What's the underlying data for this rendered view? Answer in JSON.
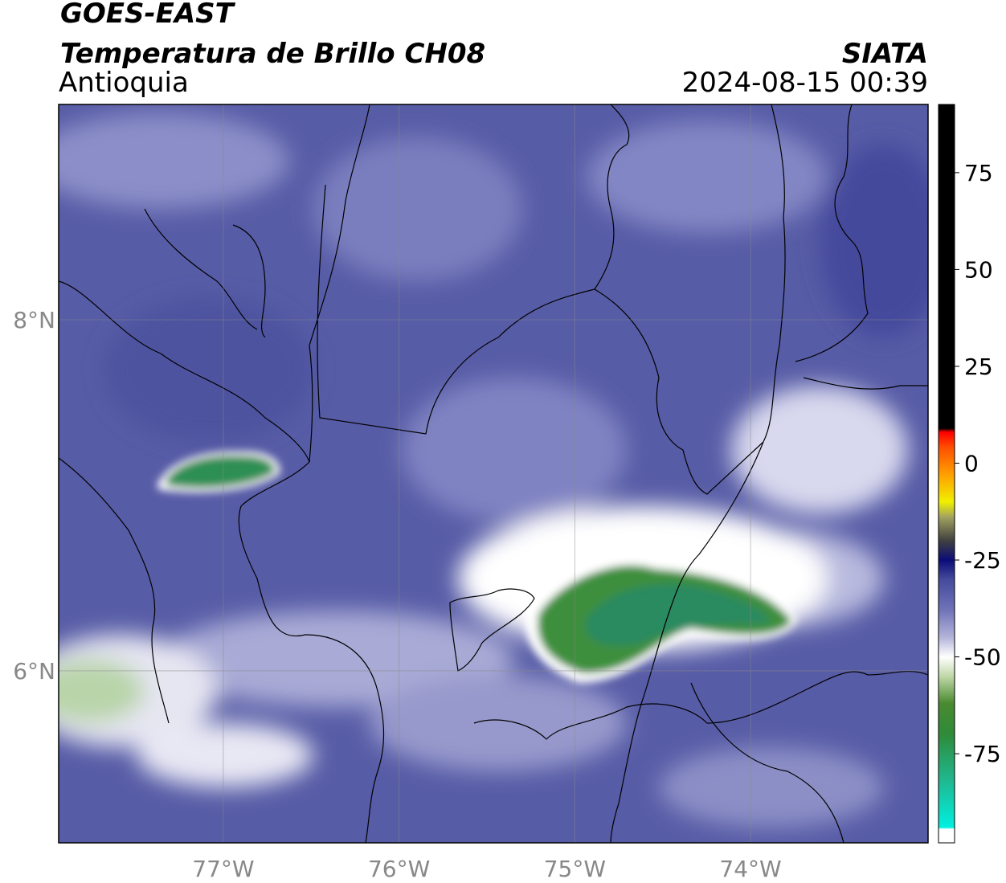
{
  "chart_data": {
    "type": "map",
    "title": "GOES-EAST",
    "subtitle": "Temperatura de Brillo CH08",
    "region": "Antioquia",
    "source": "SIATA",
    "timestamp": "2024-08-15 00:39",
    "xlim": [
      -77.937,
      -72.99
    ],
    "ylim": [
      5.02,
      9.227
    ],
    "xticks": [
      {
        "value": -77,
        "label": "77°W"
      },
      {
        "value": -76,
        "label": "76°W"
      },
      {
        "value": -75,
        "label": "75°W"
      },
      {
        "value": -74,
        "label": "74°W"
      }
    ],
    "yticks": [
      {
        "value": 6,
        "label": "6°N"
      },
      {
        "value": 8,
        "label": "8°N"
      }
    ],
    "grid": true,
    "clim": [
      -98,
      92.6
    ],
    "cticks": [
      -75,
      -50,
      -25,
      0,
      25,
      50,
      75
    ],
    "colormap": [
      {
        "value": -98,
        "color": "#ffffff"
      },
      {
        "value": -94.5,
        "color": "#ffffff"
      },
      {
        "value": -94,
        "color": "#00f0e0"
      },
      {
        "value": -82,
        "color": "#20b890"
      },
      {
        "value": -70,
        "color": "#2e8b3a"
      },
      {
        "value": -62,
        "color": "#4a8a30"
      },
      {
        "value": -55,
        "color": "#c0d8a8"
      },
      {
        "value": -50,
        "color": "#ffffff"
      },
      {
        "value": -45,
        "color": "#b4b4da"
      },
      {
        "value": -38,
        "color": "#7074b8"
      },
      {
        "value": -30,
        "color": "#454a9c"
      },
      {
        "value": -25,
        "color": "#0c0c78"
      },
      {
        "value": -20,
        "color": "#404040"
      },
      {
        "value": -14,
        "color": "#a0a060"
      },
      {
        "value": -10,
        "color": "#f0f000"
      },
      {
        "value": -3,
        "color": "#ffa000"
      },
      {
        "value": 4,
        "color": "#ff5000"
      },
      {
        "value": 8,
        "color": "#ff0000"
      },
      {
        "value": 9,
        "color": "#000000"
      },
      {
        "value": 92.6,
        "color": "#000000"
      }
    ]
  }
}
